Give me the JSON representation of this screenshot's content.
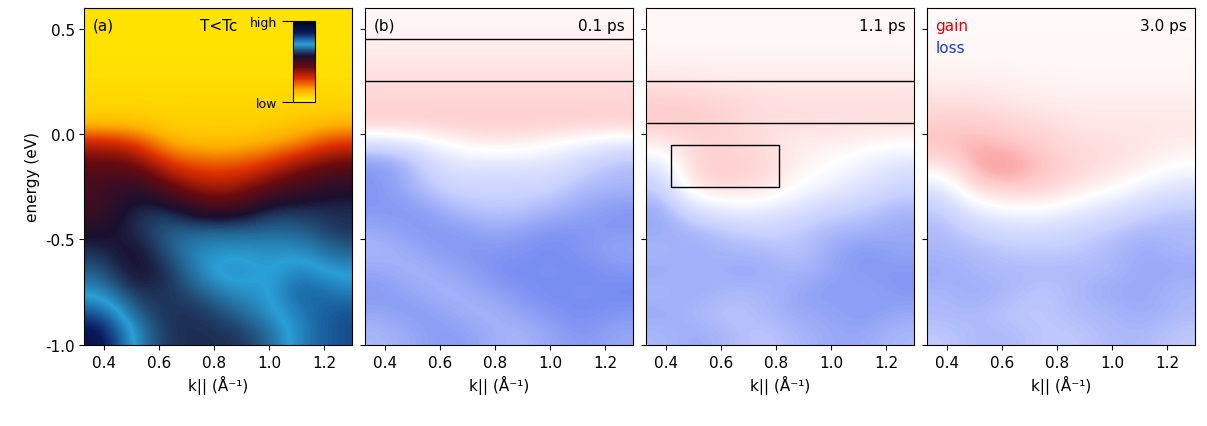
{
  "chart_data": [
    {
      "type": "heatmap",
      "panel": "(a)",
      "title": "T<Tc",
      "xlabel": "k|| (Å⁻¹)",
      "ylabel": "energy (eV)",
      "x": [
        0.39,
        0.51,
        0.63,
        0.75,
        0.88,
        1.0,
        1.12,
        1.24
      ],
      "y": [
        0.55,
        0.45,
        0.35,
        0.25,
        0.15,
        0.05,
        -0.05,
        -0.15,
        -0.25,
        -0.35,
        -0.45,
        -0.55,
        -0.65,
        -0.75,
        -0.85,
        -0.95
      ],
      "cells": [
        [
          0.05,
          0.05,
          0.05,
          0.05,
          0.05,
          0.05,
          0.05,
          0.05
        ],
        [
          0.05,
          0.05,
          0.05,
          0.05,
          0.05,
          0.05,
          0.05,
          0.05
        ],
        [
          0.05,
          0.05,
          0.05,
          0.05,
          0.05,
          0.05,
          0.05,
          0.05
        ],
        [
          0.06,
          0.06,
          0.06,
          0.06,
          0.06,
          0.06,
          0.06,
          0.06
        ],
        [
          0.07,
          0.07,
          0.07,
          0.07,
          0.07,
          0.07,
          0.07,
          0.07
        ],
        [
          0.1,
          0.1,
          0.08,
          0.08,
          0.08,
          0.08,
          0.1,
          0.12
        ],
        [
          0.35,
          0.3,
          0.15,
          0.12,
          0.12,
          0.15,
          0.2,
          0.3
        ],
        [
          0.45,
          0.45,
          0.3,
          0.25,
          0.25,
          0.3,
          0.4,
          0.45
        ],
        [
          0.5,
          0.55,
          0.45,
          0.35,
          0.35,
          0.45,
          0.5,
          0.55
        ],
        [
          0.5,
          0.6,
          0.6,
          0.5,
          0.5,
          0.6,
          0.6,
          0.6
        ],
        [
          0.55,
          0.6,
          0.65,
          0.65,
          0.65,
          0.65,
          0.65,
          0.6
        ],
        [
          0.6,
          0.55,
          0.65,
          0.7,
          0.7,
          0.7,
          0.7,
          0.65
        ],
        [
          0.65,
          0.55,
          0.6,
          0.7,
          0.75,
          0.7,
          0.75,
          0.7
        ],
        [
          0.7,
          0.6,
          0.6,
          0.65,
          0.7,
          0.7,
          0.8,
          0.75
        ],
        [
          0.8,
          0.65,
          0.6,
          0.6,
          0.65,
          0.7,
          0.75,
          0.8
        ],
        [
          0.9,
          0.7,
          0.6,
          0.6,
          0.6,
          0.65,
          0.75,
          0.8
        ]
      ],
      "colorbar": {
        "range": [
          0,
          1
        ],
        "ticks": [
          {
            "value": 1,
            "label": "high"
          },
          {
            "value": 0,
            "label": "low"
          }
        ]
      },
      "xlim": [
        0.33,
        1.3
      ],
      "xticks": [
        0.4,
        0.6,
        0.8,
        1.0,
        1.2
      ],
      "ylim": [
        -1.0,
        0.6
      ],
      "yticks": [
        {
          "value": -1.0,
          "label": "-1.0"
        },
        {
          "value": -0.5,
          "label": "-0.5"
        },
        {
          "value": 0.0,
          "label": "0.0"
        },
        {
          "value": 0.5,
          "label": "0.5"
        }
      ]
    },
    {
      "type": "heatmap",
      "panel": "(b)",
      "title": "0.1 ps",
      "xlabel": "k|| (Å⁻¹)",
      "x": [
        0.39,
        0.51,
        0.63,
        0.75,
        0.88,
        1.0,
        1.12,
        1.24
      ],
      "y": [
        0.55,
        0.45,
        0.35,
        0.25,
        0.15,
        0.05,
        -0.05,
        -0.15,
        -0.25,
        -0.35,
        -0.45,
        -0.55,
        -0.65,
        -0.75,
        -0.85,
        -0.95
      ],
      "cells": [
        [
          0.05,
          0.05,
          0.05,
          0.05,
          0.05,
          0.05,
          0.05,
          0.05
        ],
        [
          0.08,
          0.08,
          0.08,
          0.08,
          0.08,
          0.08,
          0.08,
          0.08
        ],
        [
          0.15,
          0.15,
          0.15,
          0.15,
          0.15,
          0.15,
          0.15,
          0.15
        ],
        [
          0.2,
          0.2,
          0.2,
          0.2,
          0.2,
          0.2,
          0.2,
          0.2
        ],
        [
          0.25,
          0.25,
          0.25,
          0.25,
          0.25,
          0.25,
          0.25,
          0.25
        ],
        [
          0.3,
          0.3,
          0.3,
          0.3,
          0.3,
          0.3,
          0.3,
          0.3
        ],
        [
          -0.3,
          -0.2,
          0.0,
          0.1,
          0.1,
          0.0,
          -0.1,
          -0.2
        ],
        [
          -0.5,
          -0.4,
          -0.2,
          -0.2,
          -0.2,
          -0.2,
          -0.3,
          -0.4
        ],
        [
          -0.5,
          -0.4,
          -0.3,
          -0.3,
          -0.3,
          -0.3,
          -0.4,
          -0.4
        ],
        [
          -0.5,
          -0.5,
          -0.4,
          -0.35,
          -0.35,
          -0.4,
          -0.45,
          -0.5
        ],
        [
          -0.45,
          -0.5,
          -0.5,
          -0.45,
          -0.45,
          -0.5,
          -0.5,
          -0.5
        ],
        [
          -0.4,
          -0.45,
          -0.5,
          -0.5,
          -0.5,
          -0.55,
          -0.5,
          -0.45
        ],
        [
          -0.45,
          -0.4,
          -0.45,
          -0.5,
          -0.55,
          -0.5,
          -0.55,
          -0.5
        ],
        [
          -0.5,
          -0.45,
          -0.4,
          -0.45,
          -0.5,
          -0.55,
          -0.5,
          -0.55
        ],
        [
          -0.45,
          -0.5,
          -0.45,
          -0.4,
          -0.45,
          -0.5,
          -0.55,
          -0.5
        ],
        [
          -0.4,
          -0.45,
          -0.5,
          -0.45,
          -0.4,
          -0.45,
          -0.5,
          -0.45
        ]
      ],
      "color_range": [
        -1,
        1
      ],
      "hlines": [
        0.45,
        0.25
      ],
      "xlim": [
        0.33,
        1.3
      ],
      "xticks": [
        0.4,
        0.6,
        0.8,
        1.0,
        1.2
      ],
      "ylim": [
        -1.0,
        0.6
      ],
      "yticks": [
        {
          "value": -1.0,
          "label": "-1.0"
        },
        {
          "value": -0.5,
          "label": "-0.5"
        },
        {
          "value": 0.0,
          "label": "0.0"
        },
        {
          "value": 0.5,
          "label": "0.5"
        }
      ],
      "tick_labels": "x"
    },
    {
      "type": "heatmap",
      "title": "1.1 ps",
      "xlabel": "k|| (Å⁻¹)",
      "x": [
        0.39,
        0.51,
        0.63,
        0.75,
        0.88,
        1.0,
        1.12,
        1.24
      ],
      "y": [
        0.55,
        0.45,
        0.35,
        0.25,
        0.15,
        0.05,
        -0.05,
        -0.15,
        -0.25,
        -0.35,
        -0.45,
        -0.55,
        -0.65,
        -0.75,
        -0.85,
        -0.95
      ],
      "cells": [
        [
          0.04,
          0.04,
          0.04,
          0.04,
          0.04,
          0.04,
          0.04,
          0.04
        ],
        [
          0.05,
          0.05,
          0.05,
          0.05,
          0.05,
          0.05,
          0.05,
          0.05
        ],
        [
          0.07,
          0.07,
          0.07,
          0.07,
          0.07,
          0.07,
          0.07,
          0.07
        ],
        [
          0.15,
          0.15,
          0.12,
          0.12,
          0.12,
          0.12,
          0.12,
          0.12
        ],
        [
          0.3,
          0.28,
          0.25,
          0.2,
          0.2,
          0.2,
          0.2,
          0.2
        ],
        [
          0.3,
          0.3,
          0.25,
          0.2,
          0.2,
          0.2,
          0.2,
          0.2
        ],
        [
          0.1,
          0.25,
          0.25,
          0.2,
          0.1,
          0.1,
          0.05,
          0.0
        ],
        [
          -0.2,
          0.3,
          0.3,
          0.25,
          0.1,
          0.0,
          -0.1,
          -0.2
        ],
        [
          -0.35,
          0.2,
          0.25,
          0.2,
          0.0,
          -0.1,
          -0.2,
          -0.3
        ],
        [
          -0.45,
          -0.2,
          -0.1,
          -0.1,
          -0.2,
          -0.3,
          -0.35,
          -0.4
        ],
        [
          -0.45,
          -0.4,
          -0.35,
          -0.3,
          -0.35,
          -0.4,
          -0.4,
          -0.45
        ],
        [
          -0.4,
          -0.45,
          -0.4,
          -0.4,
          -0.35,
          -0.45,
          -0.5,
          -0.45
        ],
        [
          -0.45,
          -0.4,
          -0.45,
          -0.45,
          -0.4,
          -0.45,
          -0.5,
          -0.5
        ],
        [
          -0.4,
          -0.45,
          -0.4,
          -0.4,
          -0.45,
          -0.5,
          -0.45,
          -0.5
        ],
        [
          -0.45,
          -0.4,
          -0.35,
          -0.4,
          -0.45,
          -0.45,
          -0.5,
          -0.45
        ],
        [
          -0.4,
          -0.45,
          -0.4,
          -0.35,
          -0.4,
          -0.45,
          -0.45,
          -0.4
        ]
      ],
      "color_range": [
        -1,
        1
      ],
      "hlines": [
        0.25,
        0.05
      ],
      "box": {
        "x": [
          0.42,
          0.81
        ],
        "y": [
          -0.25,
          -0.05
        ]
      },
      "xlim": [
        0.33,
        1.3
      ],
      "xticks": [
        0.4,
        0.6,
        0.8,
        1.0,
        1.2
      ],
      "ylim": [
        -1.0,
        0.6
      ],
      "yticks": [
        {
          "value": -1.0,
          "label": "-1.0"
        },
        {
          "value": -0.5,
          "label": "-0.5"
        },
        {
          "value": 0.0,
          "label": "0.0"
        },
        {
          "value": 0.5,
          "label": "0.5"
        }
      ],
      "tick_labels": "x"
    },
    {
      "type": "heatmap",
      "title": "3.0 ps",
      "annotations": [
        {
          "text": "gain",
          "color": "#e8000b"
        },
        {
          "text": "loss",
          "color": "#1a3cd0"
        }
      ],
      "xlabel": "k|| (Å⁻¹)",
      "x": [
        0.39,
        0.51,
        0.63,
        0.75,
        0.88,
        1.0,
        1.12,
        1.24
      ],
      "y": [
        0.55,
        0.45,
        0.35,
        0.25,
        0.15,
        0.05,
        -0.05,
        -0.15,
        -0.25,
        -0.35,
        -0.45,
        -0.55,
        -0.65,
        -0.75,
        -0.85,
        -0.95
      ],
      "cells": [
        [
          0.03,
          0.03,
          0.03,
          0.03,
          0.03,
          0.03,
          0.03,
          0.03
        ],
        [
          0.04,
          0.04,
          0.04,
          0.04,
          0.04,
          0.04,
          0.04,
          0.04
        ],
        [
          0.05,
          0.05,
          0.05,
          0.05,
          0.05,
          0.05,
          0.05,
          0.05
        ],
        [
          0.1,
          0.1,
          0.08,
          0.06,
          0.06,
          0.06,
          0.06,
          0.06
        ],
        [
          0.2,
          0.2,
          0.15,
          0.12,
          0.1,
          0.1,
          0.1,
          0.1
        ],
        [
          0.3,
          0.3,
          0.25,
          0.2,
          0.15,
          0.15,
          0.15,
          0.15
        ],
        [
          0.35,
          0.4,
          0.35,
          0.3,
          0.2,
          0.2,
          0.15,
          0.1
        ],
        [
          0.15,
          0.45,
          0.45,
          0.35,
          0.25,
          0.2,
          0.1,
          0.0
        ],
        [
          -0.2,
          0.3,
          0.35,
          0.3,
          0.15,
          0.05,
          -0.1,
          -0.2
        ],
        [
          -0.35,
          -0.1,
          0.0,
          0.0,
          -0.1,
          -0.2,
          -0.3,
          -0.35
        ],
        [
          -0.4,
          -0.3,
          -0.25,
          -0.25,
          -0.3,
          -0.35,
          -0.4,
          -0.4
        ],
        [
          -0.4,
          -0.4,
          -0.35,
          -0.35,
          -0.35,
          -0.4,
          -0.45,
          -0.4
        ],
        [
          -0.45,
          -0.4,
          -0.4,
          -0.4,
          -0.4,
          -0.4,
          -0.45,
          -0.45
        ],
        [
          -0.4,
          -0.45,
          -0.4,
          -0.35,
          -0.4,
          -0.45,
          -0.45,
          -0.4
        ],
        [
          -0.4,
          -0.4,
          -0.35,
          -0.35,
          -0.4,
          -0.4,
          -0.45,
          -0.4
        ],
        [
          -0.35,
          -0.4,
          -0.4,
          -0.35,
          -0.35,
          -0.4,
          -0.4,
          -0.35
        ]
      ],
      "color_range": [
        -1,
        1
      ],
      "xlim": [
        0.33,
        1.3
      ],
      "xticks": [
        0.4,
        0.6,
        0.8,
        1.0,
        1.2
      ],
      "ylim": [
        -1.0,
        0.6
      ],
      "yticks": [
        {
          "value": -1.0,
          "label": "-1.0"
        },
        {
          "value": -0.5,
          "label": "-0.5"
        },
        {
          "value": 0.0,
          "label": "0.0"
        },
        {
          "value": 0.5,
          "label": "0.5"
        }
      ],
      "tick_labels": "x"
    }
  ]
}
